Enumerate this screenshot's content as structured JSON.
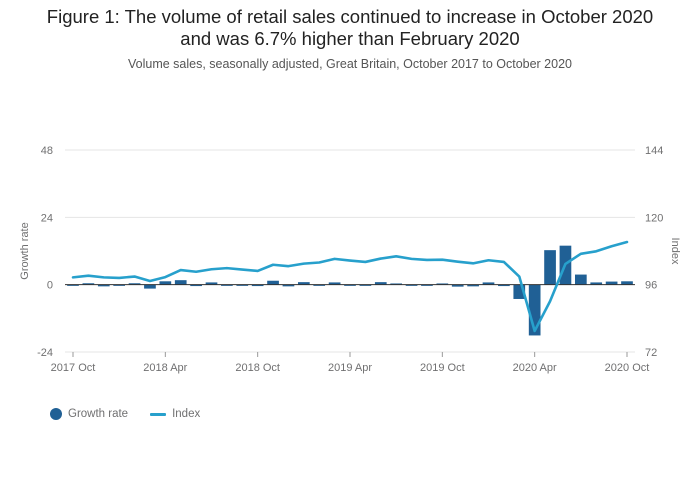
{
  "title_line1": "Figure 1: The volume of retail sales continued to increase in October 2020",
  "title_line2": "and was 6.7% higher than February 2020",
  "subtitle": "Volume sales, seasonally adjusted, Great Britain, October 2017 to October 2020",
  "colors": {
    "bar": "#206095",
    "line": "#27a0cc",
    "grid": "#e5e5e5",
    "zero": "#333333"
  },
  "legend": [
    {
      "label": "Growth rate",
      "icon": "dot-icon"
    },
    {
      "label": "Index",
      "icon": "line-icon"
    }
  ],
  "chart_data": {
    "type": "bar+line",
    "title": "Figure 1: The volume of retail sales continued to increase in October 2020 and was 6.7% higher than February 2020",
    "left_axis": {
      "label": "Growth rate",
      "range": [
        -24,
        48
      ],
      "ticks": [
        "-24",
        "0",
        "24",
        "48"
      ]
    },
    "right_axis": {
      "label": "Index",
      "range": [
        72,
        144
      ],
      "ticks": [
        "72",
        "96",
        "120",
        "144"
      ]
    },
    "x_tick_labels": [
      "2017 Oct",
      "2018 Apr",
      "2018 Oct",
      "2019 Apr",
      "2019 Oct",
      "2020 Apr",
      "2020 Oct"
    ],
    "x_tick_indices": [
      0,
      6,
      12,
      18,
      24,
      30,
      36
    ],
    "categories": [
      "2017 Oct",
      "2017 Nov",
      "2017 Dec",
      "2018 Jan",
      "2018 Feb",
      "2018 Mar",
      "2018 Apr",
      "2018 May",
      "2018 Jun",
      "2018 Jul",
      "2018 Aug",
      "2018 Sep",
      "2018 Oct",
      "2018 Nov",
      "2018 Dec",
      "2019 Jan",
      "2019 Feb",
      "2019 Mar",
      "2019 Apr",
      "2019 May",
      "2019 Jun",
      "2019 Jul",
      "2019 Aug",
      "2019 Sep",
      "2019 Oct",
      "2019 Nov",
      "2019 Dec",
      "2020 Jan",
      "2020 Feb",
      "2020 Mar",
      "2020 Apr",
      "2020 May",
      "2020 Jun",
      "2020 Jul",
      "2020 Aug",
      "2020 Sep",
      "2020 Oct"
    ],
    "series": [
      {
        "name": "Growth rate",
        "type": "bar",
        "axis": "left",
        "values": [
          -0.3,
          0.5,
          -0.6,
          -0.2,
          0.5,
          -1.4,
          1.2,
          1.6,
          -0.5,
          0.8,
          -0.2,
          -0.3,
          -0.5,
          1.4,
          -0.6,
          0.9,
          -0.4,
          0.8,
          -0.2,
          -0.4,
          0.9,
          0.3,
          -0.4,
          -0.2,
          0.1,
          -0.7,
          -0.6,
          0.8,
          -0.5,
          -5.1,
          -18.1,
          12.3,
          13.9,
          3.6,
          0.8,
          1.1,
          1.2
        ]
      },
      {
        "name": "Index",
        "type": "line",
        "axis": "right",
        "values": [
          98.6,
          99.2,
          98.6,
          98.4,
          98.9,
          97.3,
          98.7,
          101.2,
          100.6,
          101.5,
          101.9,
          101.4,
          100.9,
          103.1,
          102.6,
          103.5,
          103.9,
          105.2,
          104.6,
          104.1,
          105.3,
          106.1,
          105.2,
          104.8,
          104.9,
          104.2,
          103.6,
          104.7,
          104.1,
          98.9,
          79.5,
          90.1,
          103.4,
          107.0,
          107.9,
          109.7,
          111.2
        ]
      }
    ]
  }
}
